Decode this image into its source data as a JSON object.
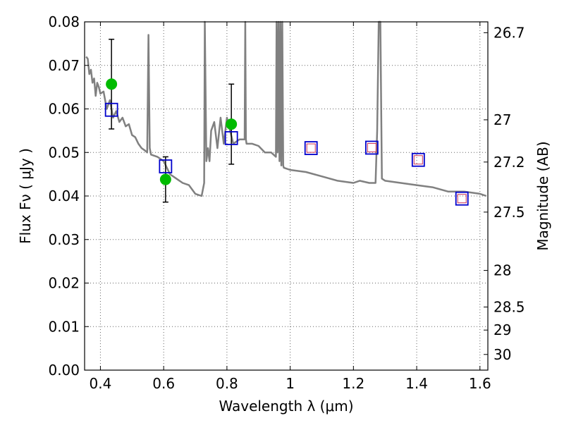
{
  "chart_data": {
    "type": "line",
    "title": "",
    "xlabel": "Wavelength  λ (μm)",
    "ylabel": "Flux  Fν  ( μJy )",
    "y2label": "Magnitude (AB)",
    "xlim": [
      0.35,
      1.625
    ],
    "ylim": [
      0.0,
      0.08
    ],
    "grid": true,
    "x_ticks": [
      0.4,
      0.6,
      0.8,
      1.0,
      1.2,
      1.4,
      1.6
    ],
    "x_tick_labels": [
      "0.4",
      "0.6",
      "0.8",
      "1",
      "1.2",
      "1.4",
      "1.6"
    ],
    "y_ticks": [
      0.0,
      0.01,
      0.02,
      0.03,
      0.04,
      0.05,
      0.06,
      0.07,
      0.08
    ],
    "y_tick_labels": [
      "0.00",
      "0.01",
      "0.02",
      "0.03",
      "0.04",
      "0.05",
      "0.06",
      "0.07",
      "0.08"
    ],
    "right_axis_ticks": [
      {
        "flux": 0.0775,
        "label": "26.7"
      },
      {
        "flux": 0.0575,
        "label": "27"
      },
      {
        "flux": 0.0478,
        "label": "27.2"
      },
      {
        "flux": 0.0363,
        "label": "27.5"
      },
      {
        "flux": 0.0229,
        "label": "28"
      },
      {
        "flux": 0.0145,
        "label": "28.5"
      },
      {
        "flux": 0.0092,
        "label": "29"
      },
      {
        "flux": 0.0036,
        "label": "30"
      }
    ],
    "colors": {
      "model": "#808080",
      "observed": "#00bb00",
      "synthetic": "#0000cc",
      "predicted": "#cc3355",
      "grid": "#666666"
    },
    "series": [
      {
        "kind": "model_spectrum",
        "x": [
          0.355,
          0.36,
          0.365,
          0.37,
          0.375,
          0.38,
          0.385,
          0.39,
          0.395,
          0.4,
          0.41,
          0.42,
          0.43,
          0.44,
          0.45,
          0.46,
          0.47,
          0.48,
          0.49,
          0.5,
          0.51,
          0.52,
          0.53,
          0.54,
          0.548,
          0.552,
          0.556,
          0.56,
          0.58,
          0.6,
          0.62,
          0.64,
          0.66,
          0.68,
          0.7,
          0.72,
          0.728,
          0.73,
          0.735,
          0.74,
          0.745,
          0.75,
          0.76,
          0.77,
          0.78,
          0.79,
          0.8,
          0.82,
          0.84,
          0.856,
          0.858,
          0.86,
          0.862,
          0.88,
          0.9,
          0.92,
          0.94,
          0.955,
          0.957,
          0.96,
          0.963,
          0.966,
          0.969,
          0.972,
          0.975,
          0.978,
          0.98,
          1.0,
          1.05,
          1.1,
          1.15,
          1.2,
          1.22,
          1.25,
          1.27,
          1.275,
          1.28,
          1.285,
          1.29,
          1.3,
          1.35,
          1.4,
          1.45,
          1.5,
          1.55,
          1.6,
          1.62
        ],
        "y": [
          0.072,
          0.0715,
          0.068,
          0.069,
          0.066,
          0.067,
          0.063,
          0.066,
          0.065,
          0.0635,
          0.064,
          0.06,
          0.062,
          0.058,
          0.0595,
          0.057,
          0.058,
          0.056,
          0.0565,
          0.054,
          0.0535,
          0.052,
          0.051,
          0.0505,
          0.05,
          0.077,
          0.051,
          0.0495,
          0.049,
          0.048,
          0.045,
          0.044,
          0.043,
          0.0425,
          0.0405,
          0.04,
          0.043,
          0.08,
          0.048,
          0.051,
          0.048,
          0.055,
          0.057,
          0.051,
          0.058,
          0.052,
          0.058,
          0.052,
          0.053,
          0.053,
          0.08,
          0.053,
          0.052,
          0.052,
          0.0515,
          0.05,
          0.05,
          0.049,
          0.08,
          0.05,
          0.08,
          0.048,
          0.08,
          0.047,
          0.08,
          0.047,
          0.0465,
          0.046,
          0.0455,
          0.0445,
          0.0435,
          0.043,
          0.0435,
          0.043,
          0.043,
          0.055,
          0.08,
          0.08,
          0.044,
          0.0435,
          0.043,
          0.0425,
          0.042,
          0.041,
          0.041,
          0.0405,
          0.04
        ]
      },
      {
        "kind": "observed_points",
        "x": [
          0.435,
          0.606,
          0.814
        ],
        "y": [
          0.0657,
          0.0438,
          0.0565
        ],
        "yerr": [
          0.0103,
          0.0052,
          0.0092
        ]
      },
      {
        "kind": "synthetic_flux",
        "x": [
          0.435,
          0.606,
          0.814,
          1.066,
          1.258,
          1.405,
          1.543
        ],
        "y": [
          0.0598,
          0.0468,
          0.0533,
          0.051,
          0.0511,
          0.0483,
          0.0394
        ]
      },
      {
        "kind": "predicted_flux",
        "x": [
          1.066,
          1.258,
          1.405,
          1.543
        ],
        "y": [
          0.051,
          0.0511,
          0.0483,
          0.0394
        ]
      }
    ]
  }
}
